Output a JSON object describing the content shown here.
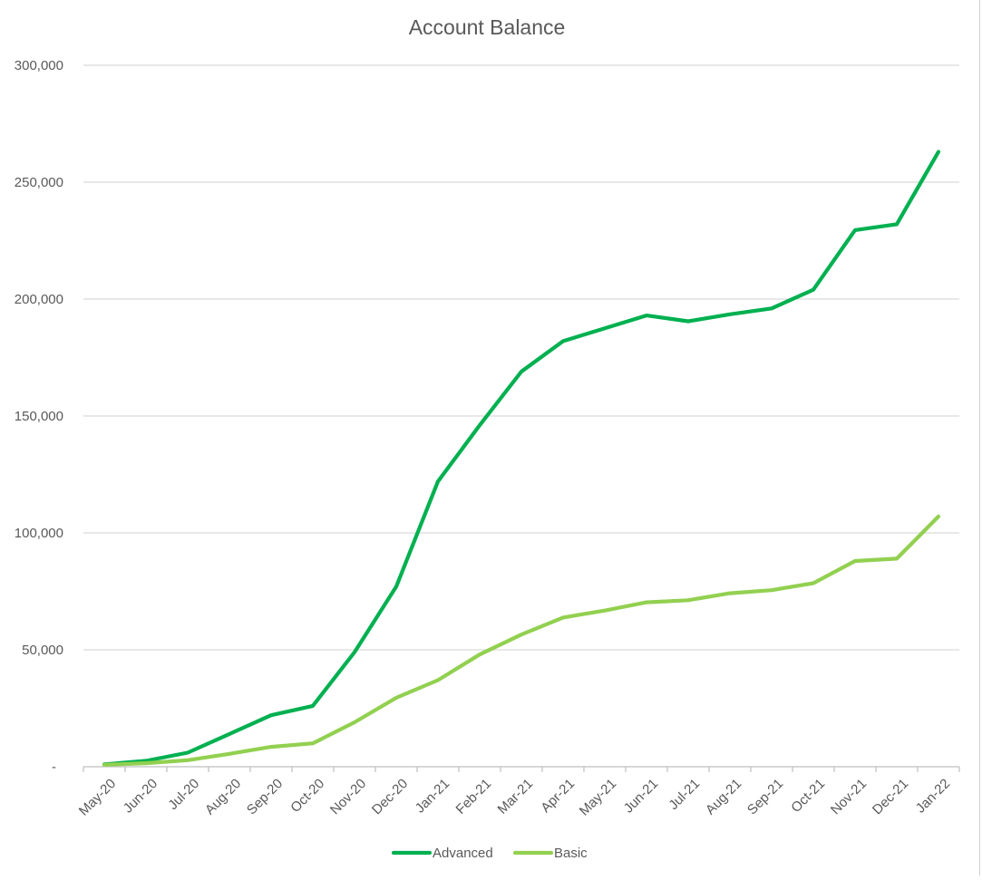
{
  "chart_data": {
    "type": "line",
    "title": "Account Balance",
    "xlabel": "",
    "ylabel": "",
    "categories": [
      "May-20",
      "Jun-20",
      "Jul-20",
      "Aug-20",
      "Sep-20",
      "Oct-20",
      "Nov-20",
      "Dec-20",
      "Jan-21",
      "Feb-21",
      "Mar-21",
      "Apr-21",
      "May-21",
      "Jun-21",
      "Jul-21",
      "Aug-21",
      "Sep-21",
      "Oct-21",
      "Nov-21",
      "Dec-21",
      "Jan-22"
    ],
    "ylim": [
      0,
      300000
    ],
    "y_ticks": [
      0,
      50000,
      100000,
      150000,
      200000,
      250000,
      300000
    ],
    "y_tick_labels": [
      "-",
      "50,000",
      "100,000",
      "150,000",
      "200,000",
      "250,000",
      "300,000"
    ],
    "grid": true,
    "legend_position": "bottom",
    "series": [
      {
        "name": "Advanced",
        "color": "#00b050",
        "values": [
          1000,
          2500,
          6000,
          14000,
          22000,
          26000,
          49000,
          77000,
          122000,
          146000,
          169000,
          182000,
          187500,
          193000,
          190500,
          193500,
          196000,
          204000,
          229500,
          232000,
          263000
        ]
      },
      {
        "name": "Basic",
        "color": "#92d050",
        "values": [
          800,
          1500,
          2800,
          5500,
          8500,
          10000,
          19000,
          29500,
          37000,
          48000,
          56500,
          63800,
          66800,
          70300,
          71200,
          74200,
          75500,
          78500,
          88000,
          89000,
          107000
        ]
      }
    ]
  }
}
